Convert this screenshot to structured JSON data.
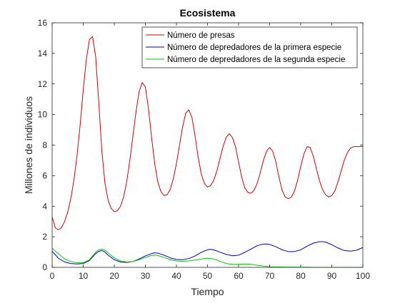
{
  "chart_data": {
    "type": "line",
    "title": "Ecosistema",
    "xlabel": "Tiempo",
    "ylabel": "Millones de individuos",
    "xlim": [
      0,
      100
    ],
    "ylim": [
      0,
      16
    ],
    "xticks": [
      0,
      10,
      20,
      30,
      40,
      50,
      60,
      70,
      80,
      90,
      100
    ],
    "yticks": [
      0,
      2,
      4,
      6,
      8,
      10,
      12,
      14,
      16
    ],
    "grid": false,
    "legend_position": "top-right",
    "series": [
      {
        "name": "Número de presas",
        "color": "#d40000",
        "x": [
          0,
          1,
          2,
          3,
          4,
          5,
          6,
          7,
          8,
          9,
          10,
          11,
          12,
          13,
          14,
          15,
          16,
          17,
          18,
          19,
          20,
          21,
          22,
          23,
          24,
          25,
          26,
          27,
          28,
          29,
          30,
          31,
          32,
          33,
          34,
          35,
          36,
          37,
          38,
          39,
          40,
          41,
          42,
          43,
          44,
          45,
          46,
          47,
          48,
          49,
          50,
          51,
          52,
          53,
          54,
          55,
          56,
          57,
          58,
          59,
          60,
          61,
          62,
          63,
          64,
          65,
          66,
          67,
          68,
          69,
          70,
          71,
          72,
          73,
          74,
          75,
          76,
          77,
          78,
          79,
          80,
          81,
          82,
          83,
          84,
          85,
          86,
          87,
          88,
          89,
          90,
          91,
          92,
          93,
          94,
          95,
          96,
          97,
          98,
          99,
          100
        ],
        "values": [
          3.3,
          2.6,
          2.45,
          2.6,
          3.0,
          3.6,
          4.5,
          5.7,
          7.3,
          9.3,
          11.6,
          13.6,
          14.9,
          15.1,
          13.8,
          10.8,
          7.6,
          5.5,
          4.4,
          3.85,
          3.65,
          3.7,
          4.0,
          4.6,
          5.6,
          7.0,
          8.6,
          10.2,
          11.5,
          12.1,
          11.8,
          10.4,
          8.5,
          6.8,
          5.6,
          4.95,
          4.7,
          4.75,
          5.1,
          5.8,
          6.8,
          8.0,
          9.2,
          10.1,
          10.3,
          9.8,
          8.6,
          7.2,
          6.1,
          5.5,
          5.25,
          5.35,
          5.7,
          6.3,
          7.1,
          7.9,
          8.5,
          8.75,
          8.5,
          7.9,
          6.9,
          5.9,
          5.2,
          4.9,
          4.85,
          5.05,
          5.5,
          6.2,
          7.0,
          7.6,
          7.85,
          7.6,
          6.9,
          5.9,
          5.05,
          4.6,
          4.5,
          4.6,
          5.0,
          5.7,
          6.6,
          7.4,
          7.9,
          7.85,
          7.3,
          6.5,
          5.7,
          5.1,
          4.75,
          4.6,
          4.7,
          5.0,
          5.6,
          6.3,
          7.0,
          7.5,
          7.8,
          7.9,
          7.9,
          7.9,
          7.9
        ]
      },
      {
        "name": "Número de depredadores de la primera especie",
        "color": "#0000c8",
        "x": [
          0,
          2,
          4,
          6,
          8,
          10,
          12,
          14,
          15,
          16,
          17,
          18,
          20,
          22,
          24,
          26,
          28,
          30,
          32,
          33,
          34,
          36,
          38,
          40,
          42,
          44,
          46,
          48,
          50,
          51,
          52,
          54,
          56,
          58,
          60,
          62,
          64,
          66,
          68,
          69,
          70,
          72,
          74,
          76,
          78,
          80,
          82,
          84,
          86,
          87,
          88,
          90,
          92,
          94,
          96,
          98,
          100
        ],
        "values": [
          1.05,
          0.6,
          0.35,
          0.25,
          0.22,
          0.25,
          0.45,
          0.9,
          1.05,
          1.1,
          1.0,
          0.8,
          0.5,
          0.35,
          0.32,
          0.38,
          0.55,
          0.75,
          0.9,
          0.95,
          0.93,
          0.8,
          0.62,
          0.52,
          0.5,
          0.58,
          0.75,
          0.98,
          1.15,
          1.18,
          1.15,
          1.0,
          0.85,
          0.76,
          0.8,
          0.98,
          1.2,
          1.42,
          1.52,
          1.53,
          1.5,
          1.35,
          1.15,
          1.03,
          1.03,
          1.15,
          1.38,
          1.58,
          1.68,
          1.68,
          1.65,
          1.48,
          1.27,
          1.1,
          1.06,
          1.12,
          1.3
        ]
      },
      {
        "name": "Número de depredadores de la segunda especie",
        "color": "#00c800",
        "x": [
          0,
          2,
          4,
          6,
          8,
          10,
          12,
          14,
          15,
          16,
          17,
          18,
          20,
          22,
          24,
          26,
          28,
          30,
          32,
          33,
          34,
          36,
          38,
          40,
          42,
          44,
          46,
          48,
          50,
          52,
          54,
          56,
          58,
          60,
          62,
          64,
          66,
          68,
          70,
          75,
          80,
          85,
          90,
          95,
          100
        ],
        "values": [
          1.25,
          0.9,
          0.55,
          0.38,
          0.3,
          0.3,
          0.5,
          1.0,
          1.15,
          1.2,
          1.12,
          0.95,
          0.62,
          0.42,
          0.35,
          0.38,
          0.5,
          0.65,
          0.78,
          0.8,
          0.78,
          0.65,
          0.5,
          0.42,
          0.4,
          0.42,
          0.48,
          0.55,
          0.6,
          0.55,
          0.4,
          0.25,
          0.2,
          0.2,
          0.22,
          0.2,
          0.14,
          0.08,
          0.04,
          0.02,
          0.01,
          0.0,
          0.0,
          0.0,
          0.0
        ]
      }
    ]
  }
}
